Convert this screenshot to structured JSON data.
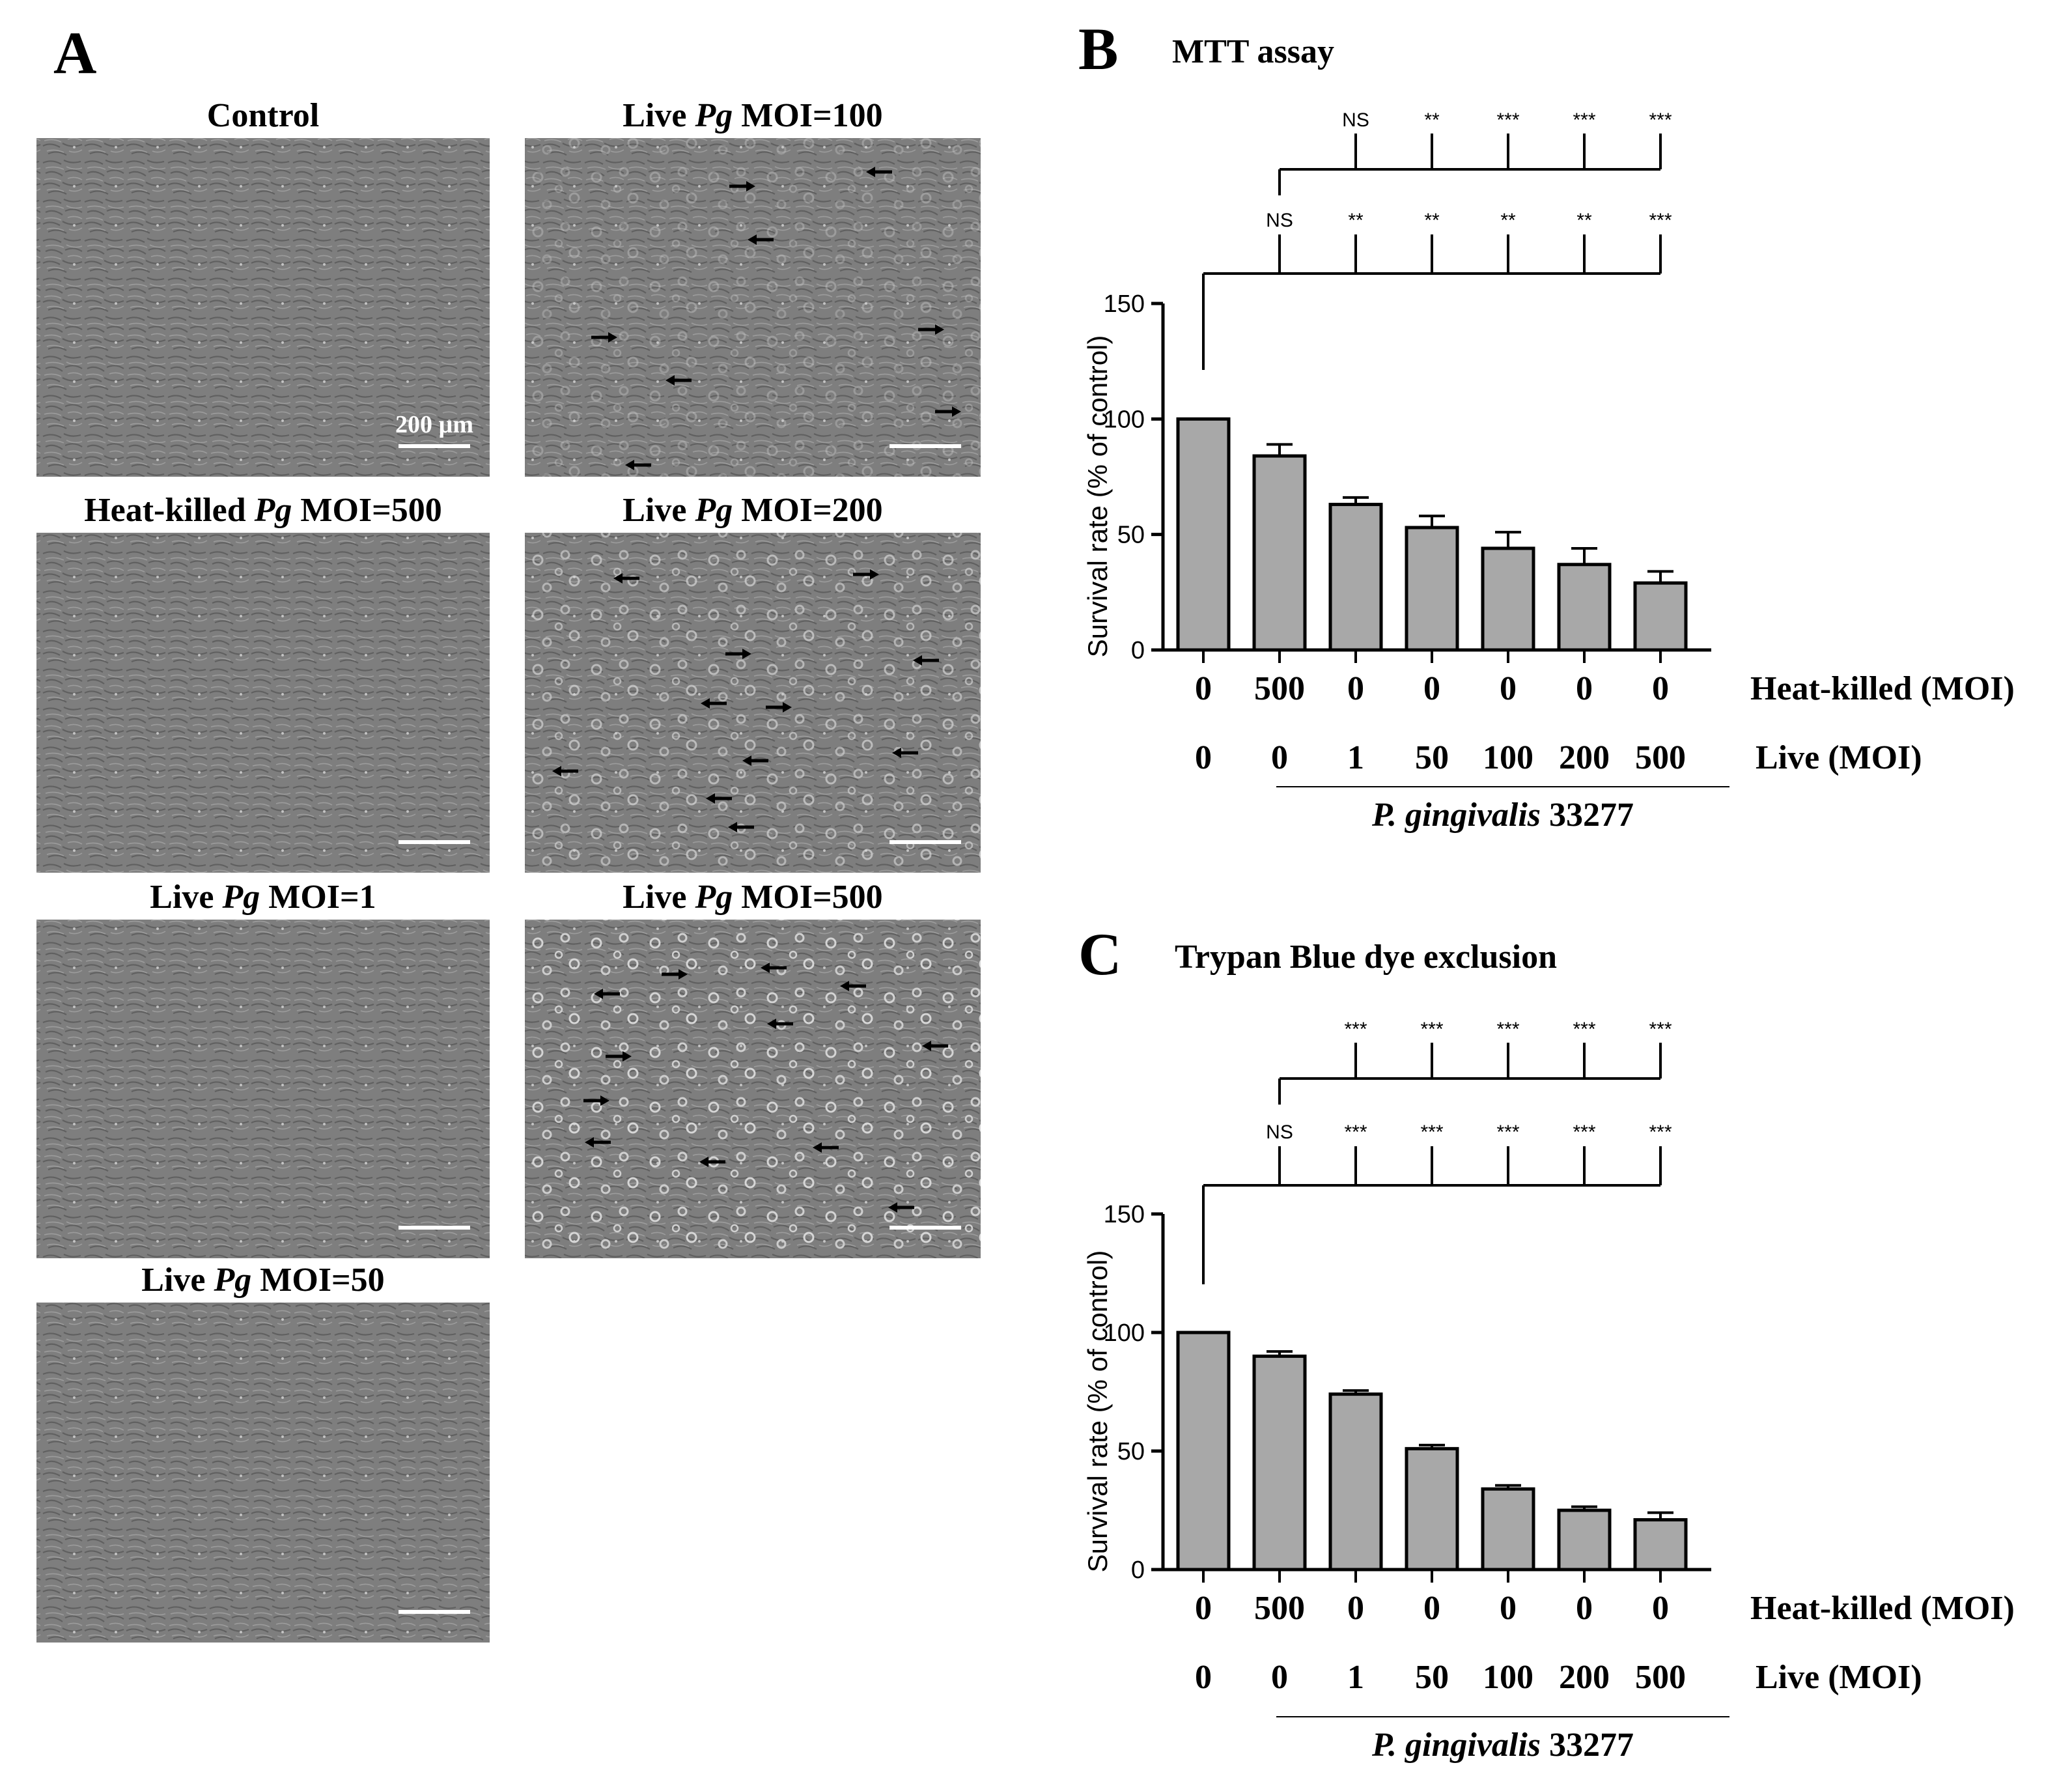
{
  "panel_a": {
    "letter": "A",
    "scale_bar_label": "200 µm",
    "micrographs": [
      {
        "key": "control",
        "title_pre": "Control",
        "title_it": "",
        "title_post": ""
      },
      {
        "key": "live100",
        "title_pre": "Live ",
        "title_it": "Pg",
        "title_post": " MOI=100"
      },
      {
        "key": "hk500",
        "title_pre": "Heat-killed ",
        "title_it": "Pg",
        "title_post": " MOI=500"
      },
      {
        "key": "live200",
        "title_pre": "Live ",
        "title_it": "Pg",
        "title_post": " MOI=200"
      },
      {
        "key": "live1",
        "title_pre": "Live ",
        "title_it": "Pg",
        "title_post": " MOI=1"
      },
      {
        "key": "live500",
        "title_pre": "Live ",
        "title_it": "Pg",
        "title_post": " MOI=500"
      },
      {
        "key": "live50",
        "title_pre": "Live ",
        "title_it": "Pg",
        "title_post": " MOI=50"
      }
    ]
  },
  "chart_data": [
    {
      "type": "bar",
      "panel_letter": "B",
      "title": "MTT assay",
      "ylabel": "Survival rate (% of control)",
      "ylim": [
        0,
        150
      ],
      "yticks": [
        "0",
        "50",
        "100",
        "150"
      ],
      "row1_label": "Heat-killed (MOI)",
      "row2_label": "Live (MOI)",
      "row1_values": [
        "0",
        "500",
        "0",
        "0",
        "0",
        "0",
        "0"
      ],
      "row2_values": [
        "0",
        "0",
        "1",
        "50",
        "100",
        "200",
        "500"
      ],
      "group_label_it": "P. gingivalis",
      "group_label_rest": " 33277",
      "values": [
        100,
        84,
        63,
        53,
        44,
        37,
        29
      ],
      "errors": [
        0,
        5,
        3,
        5,
        7,
        7,
        5
      ],
      "sig_vs_control": [
        "NS",
        "**",
        "**",
        "**",
        "**",
        "***"
      ],
      "sig_vs_heatkilled": [
        "NS",
        "**",
        "***",
        "***",
        "***"
      ]
    },
    {
      "type": "bar",
      "panel_letter": "C",
      "title": "Trypan Blue dye exclusion",
      "ylabel": "Survival rate (% of control)",
      "ylim": [
        0,
        150
      ],
      "yticks": [
        "0",
        "50",
        "100",
        "150"
      ],
      "row1_label": "Heat-killed (MOI)",
      "row2_label": "Live (MOI)",
      "row1_values": [
        "0",
        "500",
        "0",
        "0",
        "0",
        "0",
        "0"
      ],
      "row2_values": [
        "0",
        "0",
        "1",
        "50",
        "100",
        "200",
        "500"
      ],
      "group_label_it": "P. gingivalis",
      "group_label_rest": " 33277",
      "values": [
        100,
        90,
        74,
        51,
        34,
        25,
        21
      ],
      "errors": [
        0,
        2,
        1.5,
        1.5,
        1.5,
        1.5,
        3
      ],
      "sig_vs_control": [
        "NS",
        "***",
        "***",
        "***",
        "***",
        "***"
      ],
      "sig_vs_heatkilled": [
        "***",
        "***",
        "***",
        "***",
        "***"
      ]
    }
  ],
  "colors": {
    "bar_fill": "#a8a8a8",
    "ink": "#000000",
    "micrograph_base": "#7e7e7e",
    "micrograph_dark": "#5c5c5c",
    "micrograph_light": "#b6b6b6",
    "scale_bar": "#ffffff"
  }
}
